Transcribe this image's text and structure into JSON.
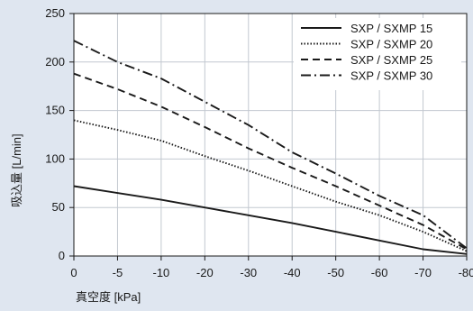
{
  "chart_data": {
    "type": "line",
    "xlabel": "真空度 [kPa]",
    "ylabel": "吸込量 [L/min]",
    "x_ticks": [
      "0",
      "-5",
      "-10",
      "-20",
      "-30",
      "-40",
      "-50",
      "-60",
      "-70",
      "-80"
    ],
    "y_ticks": [
      "0",
      "50",
      "100",
      "150",
      "200",
      "250"
    ],
    "ylim": [
      0,
      250
    ],
    "grid": true,
    "legend_position": "top-right",
    "colors": {
      "background": "#dfe6f0",
      "plot": "#ffffff",
      "line": "#1a1a1a",
      "grid": "#c2c8d0"
    },
    "series": [
      {
        "name": "SXP / SXMP 15",
        "dash": "solid",
        "x": [
          0,
          -5,
          -10,
          -20,
          -30,
          -40,
          -50,
          -60,
          -70,
          -80
        ],
        "values": [
          72,
          65,
          58,
          50,
          42,
          34,
          25,
          16,
          7,
          2
        ]
      },
      {
        "name": "SXP / SXMP 20",
        "dash": "dotted",
        "x": [
          0,
          -5,
          -10,
          -20,
          -30,
          -40,
          -50,
          -60,
          -70,
          -80
        ],
        "values": [
          140,
          130,
          119,
          103,
          88,
          72,
          56,
          42,
          25,
          5
        ]
      },
      {
        "name": "SXP / SXMP 25",
        "dash": "dashed",
        "x": [
          0,
          -5,
          -10,
          -20,
          -30,
          -40,
          -50,
          -60,
          -70,
          -80
        ],
        "values": [
          188,
          172,
          154,
          133,
          111,
          91,
          72,
          52,
          32,
          7
        ]
      },
      {
        "name": "SXP / SXMP 30",
        "dash": "dashdot",
        "x": [
          0,
          -5,
          -10,
          -20,
          -30,
          -40,
          -50,
          -60,
          -70,
          -80
        ],
        "values": [
          222,
          200,
          183,
          159,
          135,
          107,
          85,
          62,
          42,
          8
        ]
      }
    ]
  }
}
